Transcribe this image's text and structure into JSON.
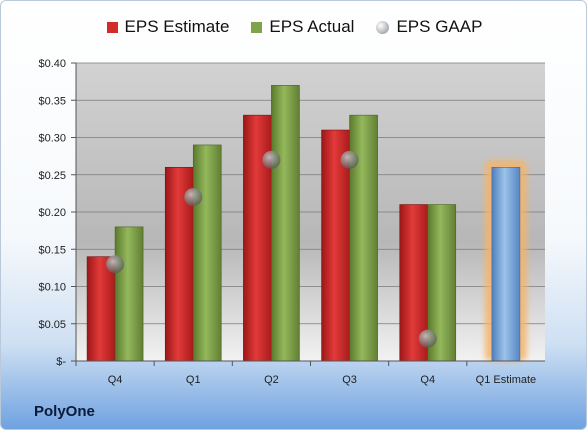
{
  "chart_data": {
    "type": "bar",
    "categories": [
      "Q4",
      "Q1",
      "Q2",
      "Q3",
      "Q4",
      "Q1 Estimate"
    ],
    "series": [
      {
        "name": "EPS Estimate",
        "values": [
          0.14,
          0.26,
          0.33,
          0.31,
          0.21,
          null
        ]
      },
      {
        "name": "EPS Actual",
        "values": [
          0.18,
          0.29,
          0.37,
          0.33,
          0.21,
          null
        ]
      },
      {
        "name": "EPS GAAP",
        "values": [
          0.13,
          0.22,
          0.27,
          0.27,
          0.03,
          null
        ]
      },
      {
        "name": "",
        "values": [
          null,
          null,
          null,
          null,
          null,
          0.26
        ]
      }
    ],
    "ylim": [
      0,
      0.4
    ],
    "yticks": [
      0,
      0.05,
      0.1,
      0.15,
      0.2,
      0.25,
      0.3,
      0.35,
      0.4
    ],
    "ytick_labels": [
      "$-",
      "$0.05",
      "$0.10",
      "$0.15",
      "$0.20",
      "$0.25",
      "$0.30",
      "$0.35",
      "$0.40"
    ],
    "legend_position": "top",
    "grid": true,
    "colors": {
      "estimate": "#d42a2a",
      "actual": "#7fa34a",
      "gaap": "#a9adb2",
      "next_estimate": "#7ba7d8",
      "highlight": "#f5b46a"
    }
  },
  "legend": {
    "estimate_label": "EPS Estimate",
    "actual_label": "EPS Actual",
    "gaap_label": "EPS GAAP"
  },
  "company": "PolyOne"
}
